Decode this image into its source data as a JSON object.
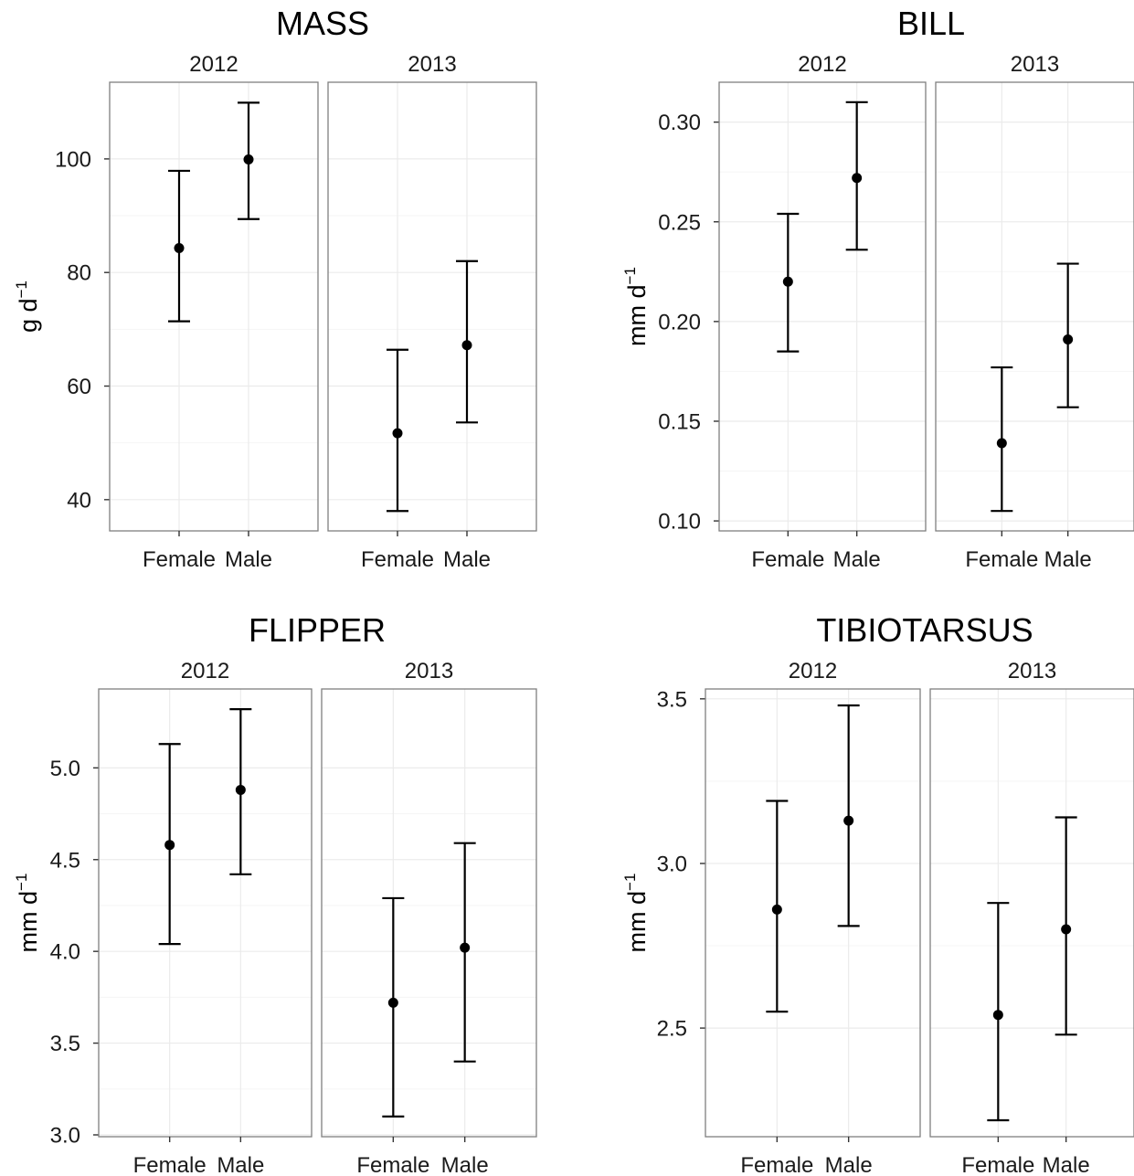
{
  "chart_data": [
    {
      "type": "errorbar",
      "title": "MASS",
      "ylabel": {
        "base": "g d",
        "sup": "−1"
      },
      "ylim": [
        34.5,
        113.5
      ],
      "yticks": [
        40,
        60,
        80,
        100
      ],
      "ytick_labels": [
        "40",
        "60",
        "80",
        "100"
      ],
      "facets": [
        {
          "label": "2012",
          "categories": [
            "Female",
            "Male"
          ],
          "points": [
            {
              "y": 84.3,
              "lower": 71.4,
              "upper": 97.9
            },
            {
              "y": 99.9,
              "lower": 89.4,
              "upper": 109.9
            }
          ]
        },
        {
          "label": "2013",
          "categories": [
            "Female",
            "Male"
          ],
          "points": [
            {
              "y": 51.7,
              "lower": 38.0,
              "upper": 66.4
            },
            {
              "y": 67.2,
              "lower": 53.6,
              "upper": 82.0
            }
          ]
        }
      ]
    },
    {
      "type": "errorbar",
      "title": "BILL",
      "ylabel": {
        "base": "mm d",
        "sup": "−1"
      },
      "ylim": [
        0.095,
        0.32
      ],
      "yticks": [
        0.1,
        0.15,
        0.2,
        0.25,
        0.3
      ],
      "ytick_labels": [
        "0.10",
        "0.15",
        "0.20",
        "0.25",
        "0.30"
      ],
      "facets": [
        {
          "label": "2012",
          "categories": [
            "Female",
            "Male"
          ],
          "points": [
            {
              "y": 0.22,
              "lower": 0.185,
              "upper": 0.254
            },
            {
              "y": 0.272,
              "lower": 0.236,
              "upper": 0.31
            }
          ]
        },
        {
          "label": "2013",
          "categories": [
            "Female",
            "Male"
          ],
          "points": [
            {
              "y": 0.139,
              "lower": 0.105,
              "upper": 0.177
            },
            {
              "y": 0.191,
              "lower": 0.157,
              "upper": 0.229
            }
          ]
        }
      ]
    },
    {
      "type": "errorbar",
      "title": "FLIPPER",
      "ylabel": {
        "base": "mm d",
        "sup": "−1"
      },
      "ylim": [
        2.99,
        5.43
      ],
      "yticks": [
        3.0,
        3.5,
        4.0,
        4.5,
        5.0
      ],
      "ytick_labels": [
        "3.0",
        "3.5",
        "4.0",
        "4.5",
        "5.0"
      ],
      "facets": [
        {
          "label": "2012",
          "categories": [
            "Female",
            "Male"
          ],
          "points": [
            {
              "y": 4.58,
              "lower": 4.04,
              "upper": 5.13
            },
            {
              "y": 4.88,
              "lower": 4.42,
              "upper": 5.32
            }
          ]
        },
        {
          "label": "2013",
          "categories": [
            "Female",
            "Male"
          ],
          "points": [
            {
              "y": 3.72,
              "lower": 3.1,
              "upper": 4.29
            },
            {
              "y": 4.02,
              "lower": 3.4,
              "upper": 4.59
            }
          ]
        }
      ]
    },
    {
      "type": "errorbar",
      "title": "TIBIOTARSUS",
      "ylabel": {
        "base": "mm d",
        "sup": "−1"
      },
      "ylim": [
        2.17,
        3.53
      ],
      "yticks": [
        2.5,
        3.0,
        3.5
      ],
      "ytick_labels": [
        "2.5",
        "3.0",
        "3.5"
      ],
      "facets": [
        {
          "label": "2012",
          "categories": [
            "Female",
            "Male"
          ],
          "points": [
            {
              "y": 2.86,
              "lower": 2.55,
              "upper": 3.19
            },
            {
              "y": 3.13,
              "lower": 2.81,
              "upper": 3.48
            }
          ]
        },
        {
          "label": "2013",
          "categories": [
            "Female",
            "Male"
          ],
          "points": [
            {
              "y": 2.54,
              "lower": 2.22,
              "upper": 2.88
            },
            {
              "y": 2.8,
              "lower": 2.48,
              "upper": 3.14
            }
          ]
        }
      ]
    }
  ]
}
